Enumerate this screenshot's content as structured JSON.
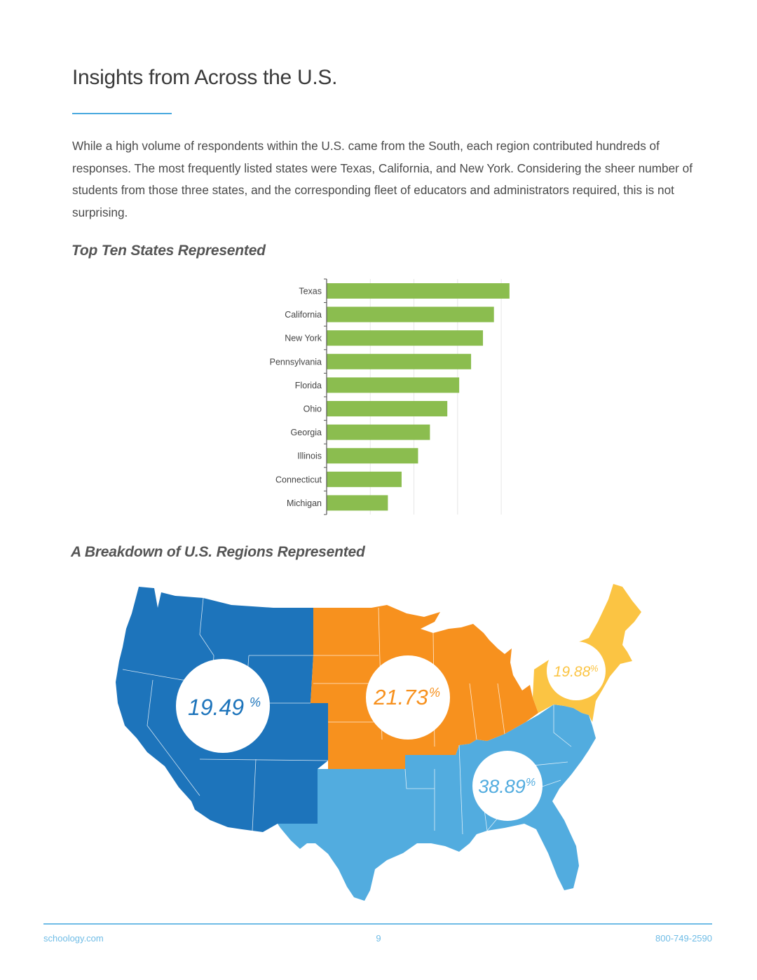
{
  "page": {
    "title": "Insights from Across the U.S.",
    "intro": "While a high volume of respondents within the U.S. came from the South, each region contributed hundreds of responses. The most frequently listed states were Texas, California, and New York. Considering the sheer number of students from those three states, and the corresponding fleet of educators and administrators required, this is not surprising."
  },
  "states_chart": {
    "heading": "Top Ten States Represented"
  },
  "regions_map": {
    "heading": "A Breakdown of U.S. Regions Represented",
    "regions": [
      {
        "name": "West",
        "value": "19.49",
        "unit": "%",
        "color": "#1d74bb"
      },
      {
        "name": "Midwest",
        "value": "21.73",
        "unit": "%",
        "color": "#f7911e"
      },
      {
        "name": "Northeast",
        "value": "19.88",
        "unit": "%",
        "color": "#fbc443"
      },
      {
        "name": "South",
        "value": "38.89",
        "unit": "%",
        "color": "#52acdf"
      }
    ]
  },
  "chart_data": {
    "type": "bar",
    "orientation": "horizontal",
    "categories": [
      "Texas",
      "California",
      "New York",
      "Pennsylvania",
      "Florida",
      "Ohio",
      "Georgia",
      "Illinois",
      "Connecticut",
      "Michigan"
    ],
    "values": [
      100,
      91.5,
      85.5,
      79,
      72.5,
      66,
      56.5,
      50,
      41,
      33.5
    ],
    "xlim": [
      0,
      115
    ],
    "grid": true,
    "bar_color": "#8bbd4f",
    "legend": "none"
  },
  "footer": {
    "website": "schoology.com",
    "page_number": "9",
    "phone": "800-749-2590"
  }
}
